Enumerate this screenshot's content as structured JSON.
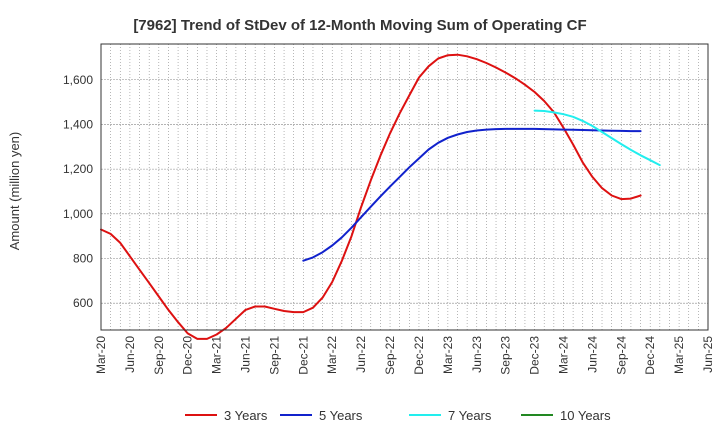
{
  "chart_data": {
    "type": "line",
    "title": "[7962]  Trend of StDev of 12-Month Moving Sum of Operating CF",
    "xlabel": "",
    "ylabel": "Amount (million yen)",
    "ylim": [
      480,
      1760
    ],
    "yticks": [
      600,
      800,
      1000,
      1200,
      1400,
      1600
    ],
    "ytick_labels": [
      "600",
      "800",
      "1,000",
      "1,200",
      "1,400",
      "1,600"
    ],
    "x_start": "2020-03",
    "x_end": "2025-06",
    "xtick_labels": [
      "Mar-20",
      "Jun-20",
      "Sep-20",
      "Dec-20",
      "Mar-21",
      "Jun-21",
      "Sep-21",
      "Dec-21",
      "Mar-22",
      "Jun-22",
      "Sep-22",
      "Dec-22",
      "Mar-23",
      "Jun-23",
      "Sep-23",
      "Dec-23",
      "Mar-24",
      "Jun-24",
      "Sep-24",
      "Dec-24",
      "Mar-25",
      "Jun-25"
    ],
    "grid": true,
    "legend_position": "bottom",
    "series": [
      {
        "name": "3 Years",
        "color": "#dd1111",
        "start": "2020-03",
        "values": [
          930,
          910,
          870,
          810,
          750,
          690,
          630,
          570,
          515,
          465,
          440,
          440,
          460,
          490,
          530,
          570,
          585,
          585,
          575,
          565,
          560,
          560,
          580,
          625,
          695,
          790,
          900,
          1030,
          1150,
          1260,
          1360,
          1450,
          1530,
          1610,
          1660,
          1695,
          1710,
          1712,
          1705,
          1692,
          1675,
          1655,
          1632,
          1607,
          1578,
          1545,
          1505,
          1455,
          1385,
          1310,
          1230,
          1165,
          1115,
          1082,
          1066,
          1068,
          1082
        ]
      },
      {
        "name": "5 Years",
        "color": "#1122cc",
        "start": "2021-12",
        "values": [
          790,
          805,
          828,
          858,
          895,
          938,
          985,
          1032,
          1078,
          1122,
          1165,
          1208,
          1248,
          1288,
          1318,
          1340,
          1355,
          1366,
          1373,
          1377,
          1379,
          1380,
          1380,
          1380,
          1380,
          1379,
          1378,
          1377,
          1376,
          1375,
          1374,
          1373,
          1372,
          1371,
          1370,
          1370
        ]
      },
      {
        "name": "7 Years",
        "color": "#22eeee",
        "start": "2023-12",
        "values": [
          1462,
          1460,
          1454,
          1446,
          1434,
          1416,
          1393,
          1366,
          1339,
          1312,
          1286,
          1262,
          1240,
          1218
        ]
      },
      {
        "name": "10 Years",
        "color": "#228822",
        "start": "2024-12",
        "values": []
      }
    ]
  }
}
